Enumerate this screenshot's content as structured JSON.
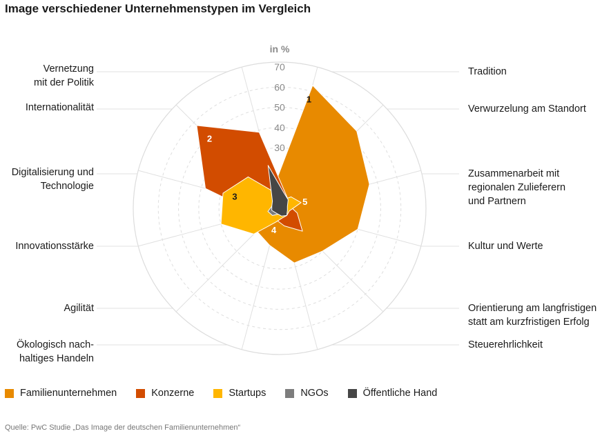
{
  "header": {
    "title": "Image verschiedener Unternehmenstypen im Vergleich"
  },
  "source": "Quelle: PwC Studie „Das Image der deutschen Familienunternehmen“",
  "chart_data": {
    "type": "radar",
    "title": "Image verschiedener Unternehmenstypen im Vergleich",
    "unit_label": "in %",
    "r_ticks": [
      "30",
      "40",
      "50",
      "60",
      "70"
    ],
    "r_tick_values": [
      30,
      40,
      50,
      60,
      70
    ],
    "r_max": 70,
    "right_categories": [
      [
        "Tradition"
      ],
      [
        "Verwurzelung am Standort"
      ],
      [
        "Zusammenarbeit mit",
        "regionalen Zulieferern",
        "und Partnern"
      ],
      [
        "Kultur und Werte"
      ],
      [
        "Orientierung am langfristigen",
        "statt am kurzfristigen Erfolg"
      ],
      [
        "Steuerehrlichkeit"
      ]
    ],
    "left_categories": [
      [
        "Vernetzung",
        "mit der Politik"
      ],
      [
        "Internationalität"
      ],
      [
        "Digitalisierung und",
        "Technologie"
      ],
      [
        "Innovationsstärke"
      ],
      [
        "Agilität"
      ],
      [
        "Ökologisch nach-",
        "haltiges Handeln"
      ]
    ],
    "axis_angles_deg": [
      15,
      45,
      75,
      105,
      135,
      165,
      195,
      225,
      255,
      285,
      315,
      345
    ],
    "axis_order": [
      "Tradition",
      "Verwurzelung am Standort",
      "Zusammenarbeit mit regionalen Zulieferern und Partnern",
      "Kultur und Werte",
      "Orientierung am langfristigen statt am kurzfristigen Erfolg",
      "Steuerehrlichkeit",
      "Ökologisch nachhaltiges Handeln",
      "Agilität",
      "Innovationsstärke",
      "Digitalisierung und Technologie",
      "Internationalität",
      "Vernetzung mit der Politik"
    ],
    "series": [
      {
        "name": "Familienunternehmen",
        "color": "#e88a00",
        "rank": "1",
        "values": [
          63,
          54,
          46,
          40,
          30,
          28,
          19,
          16,
          13,
          14,
          12,
          11
        ]
      },
      {
        "name": "Konzerne",
        "color": "#d24c00",
        "rank": "2",
        "values": [
          9,
          6,
          5,
          9,
          16,
          9,
          6,
          6,
          11,
          38,
          58,
          39
        ]
      },
      {
        "name": "Startups",
        "color": "#ffb600",
        "rank": "3",
        "values": [
          4,
          8,
          11,
          5,
          5,
          5,
          7,
          18,
          30,
          29,
          22,
          8
        ]
      },
      {
        "name": "NGOs",
        "color": "#7d7d7d",
        "rank": "4",
        "values": [
          3,
          4,
          3,
          2,
          3,
          2,
          3,
          5,
          6,
          4,
          3,
          3
        ]
      },
      {
        "name": "Öffentliche Hand",
        "color": "#464646",
        "rank": "5",
        "values": [
          8,
          6,
          4,
          4,
          5,
          4,
          3,
          3,
          4,
          4,
          5,
          22
        ]
      }
    ]
  }
}
